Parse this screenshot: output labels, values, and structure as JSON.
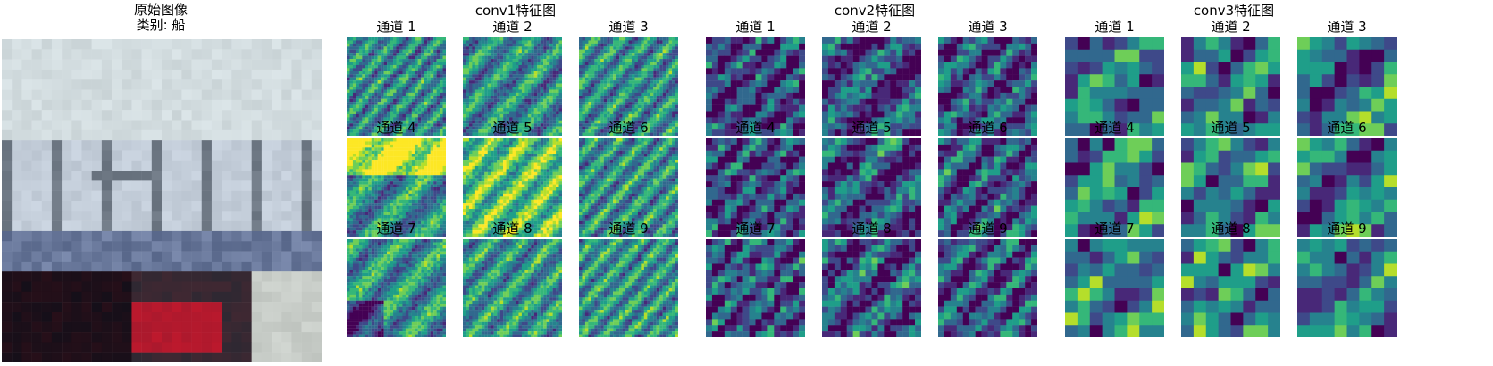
{
  "original": {
    "title": "原始图像",
    "class_label": "类别: 船",
    "image_icon": "cifar-ship-image"
  },
  "layers": [
    {
      "id": "conv1",
      "title": "conv1特征图",
      "channels": [
        "通道 1",
        "通道 2",
        "通道 3",
        "通道 4",
        "通道 5",
        "通道 6",
        "通道 7",
        "通道 8",
        "通道 9"
      ],
      "grid_size": 32
    },
    {
      "id": "conv2",
      "title": "conv2特征图",
      "channels": [
        "通道 1",
        "通道 2",
        "通道 3",
        "通道 4",
        "通道 5",
        "通道 6",
        "通道 7",
        "通道 8",
        "通道 9"
      ],
      "grid_size": 16
    },
    {
      "id": "conv3",
      "title": "conv3特征图",
      "channels": [
        "通道 1",
        "通道 2",
        "通道 3",
        "通道 4",
        "通道 5",
        "通道 6",
        "通道 7",
        "通道 8",
        "通道 9"
      ],
      "grid_size": 8
    }
  ],
  "colormap": [
    "#440154",
    "#482878",
    "#3e4989",
    "#31688e",
    "#26828e",
    "#1f9e89",
    "#35b779",
    "#6ece58",
    "#b5de2b",
    "#fde725"
  ]
}
